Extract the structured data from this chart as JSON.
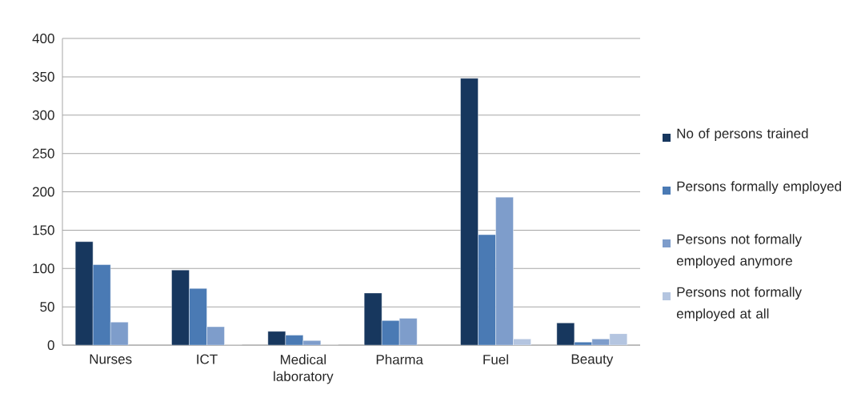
{
  "chart_data": {
    "type": "bar",
    "categories": [
      "Nurses",
      "ICT",
      "Medical laboratory",
      "Pharma",
      "Fuel",
      "Beauty"
    ],
    "series": [
      {
        "name": "No of persons trained",
        "color": "#17375e",
        "values": [
          135,
          98,
          18,
          68,
          348,
          29
        ]
      },
      {
        "name": "Persons formally employed",
        "color": "#4a7ab4",
        "values": [
          105,
          74,
          13,
          32,
          144,
          4
        ]
      },
      {
        "name": "Persons not formally employed anymore",
        "color": "#7e9dcb",
        "values": [
          30,
          24,
          6,
          35,
          193,
          8
        ]
      },
      {
        "name": "Persons not formally employed at all",
        "color": "#b4c5e0",
        "values": [
          null,
          0,
          0,
          null,
          8,
          15
        ]
      }
    ],
    "ylim": [
      0,
      400
    ],
    "yticks": [
      0,
      50,
      100,
      150,
      200,
      250,
      300,
      350,
      400
    ],
    "grid": "y",
    "legend": "right"
  }
}
